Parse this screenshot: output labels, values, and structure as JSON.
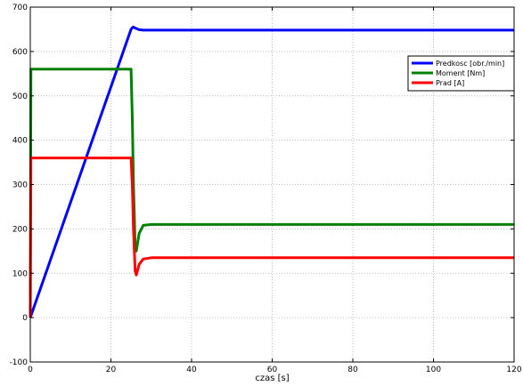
{
  "chart_data": {
    "type": "line",
    "title": "",
    "xlabel": "czas [s]",
    "ylabel": "",
    "xlim": [
      0,
      120
    ],
    "ylim": [
      -100,
      700
    ],
    "xticks": [
      0,
      20,
      40,
      60,
      80,
      100,
      120
    ],
    "yticks": [
      -100,
      0,
      100,
      200,
      300,
      400,
      500,
      600,
      700
    ],
    "grid": true,
    "legend_position": "top-right",
    "series": [
      {
        "name": "Predkosc [obr./min]",
        "color": "#0000ff",
        "x": [
          0,
          25,
          25.5,
          26.2,
          27,
          28,
          120
        ],
        "y": [
          0,
          650,
          655,
          652,
          649,
          648,
          648
        ]
      },
      {
        "name": "Moment [Nm]",
        "color": "#008000",
        "x": [
          0,
          0.15,
          25,
          25.3,
          25.6,
          26.0,
          26.3,
          27,
          28,
          30,
          120
        ],
        "y": [
          0,
          560,
          560,
          450,
          300,
          160,
          150,
          190,
          208,
          210,
          210
        ]
      },
      {
        "name": "Prad [A]",
        "color": "#ff0000",
        "x": [
          0,
          0.15,
          25,
          25.3,
          25.6,
          26.0,
          26.3,
          27,
          28,
          30,
          120
        ],
        "y": [
          0,
          360,
          360,
          300,
          200,
          105,
          96,
          120,
          132,
          135,
          135
        ]
      }
    ]
  }
}
